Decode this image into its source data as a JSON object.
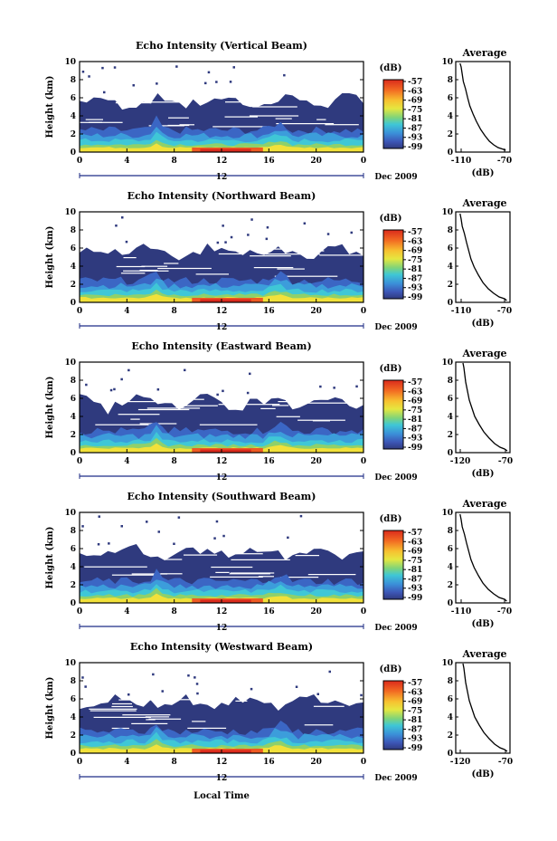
{
  "chart_data": [
    {
      "type": "heatmap",
      "title": "Echo Intensity (Vertical Beam)",
      "ylabel": "Height (km)",
      "xticks": [
        "0",
        "4",
        "8",
        "12",
        "16",
        "20",
        "0"
      ],
      "xlim": [
        0,
        24
      ],
      "ylim": [
        0,
        10
      ],
      "yticks": [
        "0",
        "2",
        "4",
        "6",
        "8",
        "10"
      ],
      "date_label": "Dec 2009",
      "date_tick": "12",
      "colorbar": {
        "unit": "(dB)",
        "ticks": [
          "-57",
          "-63",
          "-69",
          "-75",
          "-81",
          "-87",
          "-93",
          "-99"
        ]
      },
      "average": {
        "title": "Average",
        "xlabel": "(dB)",
        "xticks": [
          "-110",
          "-70"
        ],
        "xlim": [
          -115,
          -65
        ],
        "yticks": [
          "0",
          "2",
          "4",
          "6",
          "8",
          "10"
        ],
        "profile": [
          [
            -69,
            0.2
          ],
          [
            -71,
            0.3
          ],
          [
            -76,
            0.5
          ],
          [
            -80,
            0.8
          ],
          [
            -84,
            1.2
          ],
          [
            -88,
            1.8
          ],
          [
            -92,
            2.5
          ],
          [
            -96,
            3.4
          ],
          [
            -99,
            4.2
          ],
          [
            -102,
            5.1
          ],
          [
            -104,
            6.0
          ],
          [
            -106,
            7.0
          ],
          [
            -108,
            7.8
          ],
          [
            -109,
            8.6
          ],
          [
            -110,
            9.4
          ],
          [
            -111,
            9.8
          ]
        ]
      }
    },
    {
      "type": "heatmap",
      "title": "Echo Intensity (Northward Beam)",
      "ylabel": "Height (km)",
      "xticks": [
        "0",
        "4",
        "8",
        "12",
        "16",
        "20",
        "0"
      ],
      "xlim": [
        0,
        24
      ],
      "ylim": [
        0,
        10
      ],
      "yticks": [
        "0",
        "2",
        "4",
        "6",
        "8",
        "10"
      ],
      "date_label": "Dec 2009",
      "date_tick": "12",
      "colorbar": {
        "unit": "(dB)",
        "ticks": [
          "-57",
          "-63",
          "-69",
          "-75",
          "-81",
          "-87",
          "-93",
          "-99"
        ]
      },
      "average": {
        "title": "Average",
        "xlabel": "(dB)",
        "xticks": [
          "-110",
          "-70"
        ],
        "xlim": [
          -115,
          -65
        ],
        "yticks": [
          "0",
          "2",
          "4",
          "6",
          "8",
          "10"
        ],
        "profile": [
          [
            -68,
            0.2
          ],
          [
            -70,
            0.4
          ],
          [
            -75,
            0.6
          ],
          [
            -80,
            1.0
          ],
          [
            -85,
            1.5
          ],
          [
            -90,
            2.2
          ],
          [
            -94,
            3.0
          ],
          [
            -98,
            3.9
          ],
          [
            -101,
            4.8
          ],
          [
            -103,
            5.7
          ],
          [
            -105,
            6.6
          ],
          [
            -107,
            7.6
          ],
          [
            -109,
            8.4
          ],
          [
            -110,
            9.2
          ],
          [
            -111,
            9.8
          ]
        ]
      }
    },
    {
      "type": "heatmap",
      "title": "Echo Intensity (Eastward Beam)",
      "ylabel": "Height (km)",
      "xticks": [
        "0",
        "4",
        "8",
        "12",
        "16",
        "20",
        "0"
      ],
      "xlim": [
        0,
        24
      ],
      "ylim": [
        0,
        10
      ],
      "yticks": [
        "0",
        "2",
        "4",
        "6",
        "8",
        "10"
      ],
      "date_label": "Dec 2009",
      "date_tick": "12",
      "colorbar": {
        "unit": "(dB)",
        "ticks": [
          "-57",
          "-63",
          "-69",
          "-75",
          "-81",
          "-87",
          "-93",
          "-99"
        ]
      },
      "average": {
        "title": "Average",
        "xlabel": "(dB)",
        "xticks": [
          "-120",
          "-70"
        ],
        "xlim": [
          -125,
          -65
        ],
        "yticks": [
          "0",
          "2",
          "4",
          "6",
          "8",
          "10"
        ],
        "profile": [
          [
            -68,
            0.2
          ],
          [
            -71,
            0.4
          ],
          [
            -76,
            0.6
          ],
          [
            -82,
            1.0
          ],
          [
            -88,
            1.6
          ],
          [
            -94,
            2.3
          ],
          [
            -99,
            3.1
          ],
          [
            -104,
            4.0
          ],
          [
            -107,
            4.9
          ],
          [
            -110,
            5.8
          ],
          [
            -112,
            6.8
          ],
          [
            -114,
            7.8
          ],
          [
            -115,
            8.6
          ],
          [
            -116,
            9.4
          ],
          [
            -117,
            9.9
          ]
        ]
      }
    },
    {
      "type": "heatmap",
      "title": "Echo Intensity (Southward Beam)",
      "ylabel": "Height (km)",
      "xticks": [
        "0",
        "4",
        "8",
        "12",
        "16",
        "20",
        "0"
      ],
      "xlim": [
        0,
        24
      ],
      "ylim": [
        0,
        10
      ],
      "yticks": [
        "0",
        "2",
        "4",
        "6",
        "8",
        "10"
      ],
      "date_label": "Dec 2009",
      "date_tick": "12",
      "colorbar": {
        "unit": "(dB)",
        "ticks": [
          "-57",
          "-63",
          "-69",
          "-75",
          "-81",
          "-87",
          "-93",
          "-99"
        ]
      },
      "average": {
        "title": "Average",
        "xlabel": "(dB)",
        "xticks": [
          "-110",
          "-70"
        ],
        "xlim": [
          -115,
          -65
        ],
        "yticks": [
          "0",
          "2",
          "4",
          "6",
          "8",
          "10"
        ],
        "profile": [
          [
            -68,
            0.2
          ],
          [
            -70,
            0.4
          ],
          [
            -75,
            0.6
          ],
          [
            -80,
            1.0
          ],
          [
            -85,
            1.5
          ],
          [
            -90,
            2.2
          ],
          [
            -94,
            3.0
          ],
          [
            -98,
            3.9
          ],
          [
            -101,
            4.8
          ],
          [
            -103,
            5.7
          ],
          [
            -105,
            6.6
          ],
          [
            -107,
            7.6
          ],
          [
            -109,
            8.4
          ],
          [
            -110,
            9.2
          ],
          [
            -111,
            9.8
          ]
        ]
      }
    },
    {
      "type": "heatmap",
      "title": "Echo Intensity (Westward Beam)",
      "ylabel": "Height (km)",
      "xlabel": "Local Time",
      "xticks": [
        "0",
        "4",
        "8",
        "12",
        "16",
        "20",
        "0"
      ],
      "xlim": [
        0,
        24
      ],
      "ylim": [
        0,
        10
      ],
      "yticks": [
        "0",
        "2",
        "4",
        "6",
        "8",
        "10"
      ],
      "date_label": "Dec 2009",
      "date_tick": "12",
      "colorbar": {
        "unit": "(dB)",
        "ticks": [
          "-57",
          "-63",
          "-69",
          "-75",
          "-81",
          "-87",
          "-93",
          "-99"
        ]
      },
      "average": {
        "title": "Average",
        "xlabel": "(dB)",
        "xticks": [
          "-120",
          "-70"
        ],
        "xlim": [
          -125,
          -65
        ],
        "yticks": [
          "0",
          "2",
          "4",
          "6",
          "8",
          "10"
        ],
        "profile": [
          [
            -68,
            0.2
          ],
          [
            -71,
            0.4
          ],
          [
            -76,
            0.6
          ],
          [
            -82,
            1.0
          ],
          [
            -88,
            1.6
          ],
          [
            -94,
            2.3
          ],
          [
            -99,
            3.1
          ],
          [
            -104,
            4.0
          ],
          [
            -107,
            4.9
          ],
          [
            -110,
            5.8
          ],
          [
            -112,
            6.8
          ],
          [
            -114,
            7.8
          ],
          [
            -115,
            8.6
          ],
          [
            -116,
            9.4
          ],
          [
            -117,
            9.9
          ]
        ]
      }
    }
  ],
  "colors": {
    "background_fill": "#2f3a7e",
    "scale": [
      "#da2a1c",
      "#ee5a22",
      "#f7a42a",
      "#f2e13a",
      "#8fd06a",
      "#3fc7d6",
      "#3c9ddb",
      "#3b66c4",
      "#34449a"
    ],
    "axis": "#000000",
    "date_axis": "#1f2c86"
  }
}
